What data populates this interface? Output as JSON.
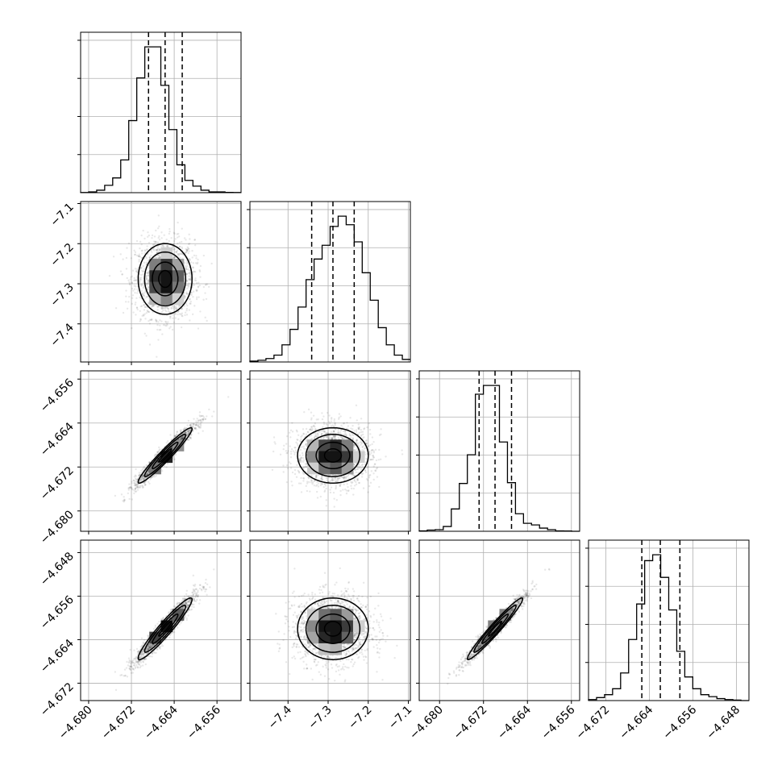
{
  "chart_data": {
    "type": "corner",
    "description_free": true,
    "grid": true,
    "parameters": [
      {
        "ticks": [
          "−4.680",
          "−4.672",
          "−4.664",
          "−4.656"
        ],
        "tick_values": [
          -4.68,
          -4.672,
          -4.664,
          -4.656
        ],
        "range": [
          -4.6815,
          -4.6515
        ],
        "quantiles": [
          -4.6688,
          -4.6657,
          -4.6625
        ],
        "hist": [
          0.2,
          1.0,
          3.0,
          9.0,
          18.0,
          40.0,
          88.0,
          140.0,
          178.0,
          178.0,
          131.0,
          77.0,
          34.0,
          15.0,
          8.0,
          3.0,
          1.0,
          1.0,
          0.3,
          0.2
        ]
      },
      {
        "ticks": [
          "−7.4",
          "−7.3",
          "−7.2",
          "−7.1"
        ],
        "tick_values": [
          -7.4,
          -7.3,
          -7.2,
          -7.1
        ],
        "range": [
          -7.495,
          -7.095
        ],
        "quantiles": [
          -7.341,
          -7.288,
          -7.235
        ],
        "hist": [
          1,
          2,
          4,
          8,
          20,
          38,
          64,
          96,
          120,
          136,
          158,
          170,
          160,
          140,
          104,
          72,
          40,
          20,
          8,
          3
        ]
      },
      {
        "ticks": [
          "−4.656",
          "−4.664",
          "−4.672",
          "−4.680"
        ],
        "tick_values": [
          -4.656,
          -4.664,
          -4.672,
          -4.68
        ],
        "range": [
          -4.6837,
          -4.6545
        ],
        "quantiles": [
          -4.6728,
          -4.6699,
          -4.6669
        ],
        "hist": [
          0.5,
          1.5,
          2.0,
          6.0,
          28.0,
          60.0,
          96.0,
          172.0,
          183.0,
          183.0,
          112.0,
          61.0,
          22.0,
          10.0,
          8.0,
          4.0,
          2.0,
          0.5,
          0.3,
          0.0
        ]
      },
      {
        "ticks": [
          "−4.648",
          "−4.656",
          "−4.664",
          "−4.672"
        ],
        "tick_values": [
          -4.648,
          -4.656,
          -4.664,
          -4.672
        ],
        "range": [
          -4.6752,
          -4.6457
        ],
        "quantiles": [
          -4.6654,
          -4.662,
          -4.6584
        ],
        "hist": [
          1.0,
          3.0,
          6.0,
          12.0,
          28.0,
          62.0,
          98.0,
          142.0,
          148.0,
          125.0,
          92.0,
          50.0,
          24.0,
          12.0,
          6.0,
          4.0,
          2.0,
          1.0,
          0.5,
          0.0
        ]
      }
    ],
    "pairs": [
      {
        "row": 1,
        "col": 0,
        "mean": [
          -4.6657,
          -7.288
        ],
        "sd": [
          0.0024,
          0.042
        ],
        "corr": 0.0
      },
      {
        "row": 2,
        "col": 0,
        "mean": [
          -4.6657,
          -4.6699
        ],
        "sd": [
          0.0024,
          0.0024
        ],
        "corr": 0.96
      },
      {
        "row": 2,
        "col": 1,
        "mean": [
          -7.288,
          -4.6699
        ],
        "sd": [
          0.042,
          0.0024
        ],
        "corr": 0.0
      },
      {
        "row": 3,
        "col": 0,
        "mean": [
          -4.6657,
          -4.662
        ],
        "sd": [
          0.0024,
          0.0027
        ],
        "corr": 0.95
      },
      {
        "row": 3,
        "col": 1,
        "mean": [
          -7.288,
          -4.662
        ],
        "sd": [
          0.042,
          0.0027
        ],
        "corr": 0.0
      },
      {
        "row": 3,
        "col": 2,
        "mean": [
          -4.6699,
          -4.662
        ],
        "sd": [
          0.0024,
          0.0027
        ],
        "corr": 0.97
      }
    ]
  }
}
